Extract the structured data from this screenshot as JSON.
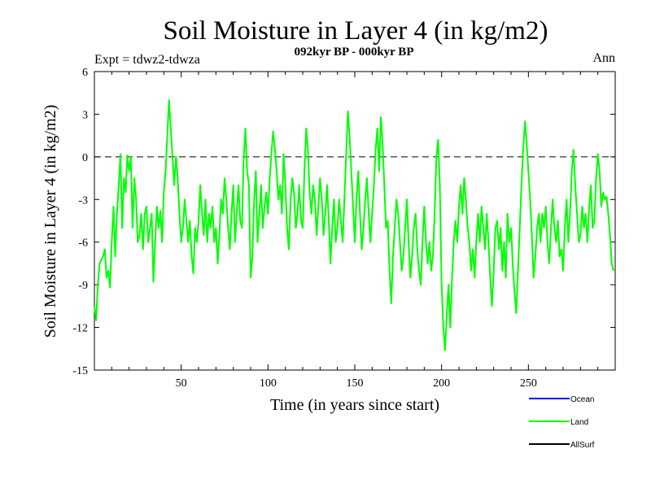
{
  "chart_data": {
    "type": "line",
    "title": "Soil Moisture in Layer 4 (in kg/m2)",
    "subtitle": "092kyr BP - 000kyr BP",
    "left_note": "Expt = tdwz2-tdwza",
    "right_note": "Ann",
    "xlabel": "Time (in years since start)",
    "ylabel": "Soil Moisture in Layer 4 (in kg/m2)",
    "xlim": [
      0,
      300
    ],
    "ylim": [
      -15,
      6
    ],
    "x_ticks": [
      50,
      100,
      150,
      200,
      250
    ],
    "y_ticks": [
      6,
      3,
      0,
      -3,
      -6,
      -9,
      -12,
      -15
    ],
    "zero_line": true,
    "legend": [
      {
        "name": "Ocean",
        "color": "#0000ff"
      },
      {
        "name": "Land",
        "color": "#00ff00"
      },
      {
        "name": "AllSurf",
        "color": "#000000"
      }
    ],
    "series": [
      {
        "name": "Land",
        "color": "#00ff00",
        "points": [
          [
            0,
            -10.5
          ],
          [
            1,
            -11.5
          ],
          [
            2,
            -9
          ],
          [
            3,
            -7.5
          ],
          [
            5,
            -7
          ],
          [
            6,
            -6.5
          ],
          [
            7,
            -8.5
          ],
          [
            8,
            -8
          ],
          [
            9,
            -9.2
          ],
          [
            10,
            -6
          ],
          [
            11,
            -3.5
          ],
          [
            12,
            -7
          ],
          [
            13,
            -4
          ],
          [
            14,
            -2
          ],
          [
            15,
            0.2
          ],
          [
            16,
            -5
          ],
          [
            17,
            -1.5
          ],
          [
            18,
            -2.5
          ],
          [
            19,
            0.1
          ],
          [
            20,
            -1
          ],
          [
            21,
            0
          ],
          [
            22,
            -5
          ],
          [
            23,
            -1.5
          ],
          [
            24,
            -3
          ],
          [
            25,
            -6
          ],
          [
            26,
            -5.5
          ],
          [
            27,
            -4
          ],
          [
            28,
            -6.5
          ],
          [
            29,
            -4
          ],
          [
            30,
            -3.5
          ],
          [
            31,
            -6
          ],
          [
            32,
            -5
          ],
          [
            33,
            -4
          ],
          [
            34,
            -8.8
          ],
          [
            35,
            -6
          ],
          [
            36,
            -3.5
          ],
          [
            37,
            -5
          ],
          [
            38,
            -3.8
          ],
          [
            39,
            -6
          ],
          [
            40,
            -2.5
          ],
          [
            41,
            -1
          ],
          [
            42,
            1.5
          ],
          [
            43,
            4
          ],
          [
            44,
            2
          ],
          [
            45,
            0
          ],
          [
            46,
            -2
          ],
          [
            47,
            0
          ],
          [
            48,
            -1.5
          ],
          [
            49,
            -4
          ],
          [
            50,
            -6
          ],
          [
            51,
            -5
          ],
          [
            52,
            -3
          ],
          [
            53,
            -4.5
          ],
          [
            54,
            -6
          ],
          [
            55,
            -4.5
          ],
          [
            56,
            -7
          ],
          [
            57,
            -8.2
          ],
          [
            58,
            -5
          ],
          [
            59,
            -6
          ],
          [
            60,
            -4.5
          ],
          [
            61,
            -2
          ],
          [
            62,
            -4
          ],
          [
            63,
            -5.5
          ],
          [
            64,
            -3
          ],
          [
            65,
            -6
          ],
          [
            66,
            -4
          ],
          [
            67,
            -5
          ],
          [
            68,
            -3.5
          ],
          [
            69,
            -6
          ],
          [
            70,
            -5
          ],
          [
            71,
            -7.5
          ],
          [
            72,
            -5.5
          ],
          [
            73,
            -3
          ],
          [
            74,
            -4
          ],
          [
            75,
            -1.5
          ],
          [
            76,
            -3
          ],
          [
            77,
            -5
          ],
          [
            78,
            -6.5
          ],
          [
            79,
            -4
          ],
          [
            80,
            -2
          ],
          [
            81,
            -6
          ],
          [
            82,
            -4
          ],
          [
            83,
            -2
          ],
          [
            84,
            -4.5
          ],
          [
            85,
            -5
          ],
          [
            86,
            0
          ],
          [
            87,
            2
          ],
          [
            88,
            -1
          ],
          [
            89,
            -2
          ],
          [
            90,
            -8.5
          ],
          [
            91,
            -7
          ],
          [
            92,
            -3
          ],
          [
            93,
            -1
          ],
          [
            94,
            -6
          ],
          [
            95,
            -4
          ],
          [
            96,
            -2
          ],
          [
            97,
            -5
          ],
          [
            98,
            -3.5
          ],
          [
            99,
            -2.5
          ],
          [
            100,
            -4
          ],
          [
            101,
            -1.5
          ],
          [
            102,
            0.3
          ],
          [
            103,
            1.8
          ],
          [
            104,
            0.5
          ],
          [
            105,
            -1
          ],
          [
            106,
            -3
          ],
          [
            107,
            -2
          ],
          [
            108,
            -4
          ],
          [
            109,
            0.2
          ],
          [
            110,
            -2
          ],
          [
            111,
            -5
          ],
          [
            112,
            -6.5
          ],
          [
            113,
            -3
          ],
          [
            114,
            -1.5
          ],
          [
            115,
            -2.5
          ],
          [
            116,
            -5
          ],
          [
            117,
            -4
          ],
          [
            118,
            -2
          ],
          [
            119,
            -4.5
          ],
          [
            120,
            -5
          ],
          [
            121,
            -1
          ],
          [
            122,
            2
          ],
          [
            123,
            0.5
          ],
          [
            124,
            -2.5
          ],
          [
            125,
            -4
          ],
          [
            126,
            -2
          ],
          [
            127,
            -3
          ],
          [
            128,
            -5.5
          ],
          [
            129,
            -3.5
          ],
          [
            130,
            -1.5
          ],
          [
            131,
            -3
          ],
          [
            132,
            -5.5
          ],
          [
            133,
            -4
          ],
          [
            134,
            -2
          ],
          [
            135,
            -4.5
          ],
          [
            136,
            -7.5
          ],
          [
            137,
            -5
          ],
          [
            138,
            -3
          ],
          [
            139,
            -6
          ],
          [
            140,
            -5
          ],
          [
            141,
            -3
          ],
          [
            142,
            -4.5
          ],
          [
            143,
            -6
          ],
          [
            144,
            -3
          ],
          [
            145,
            0
          ],
          [
            146,
            3.2
          ],
          [
            147,
            1.5
          ],
          [
            148,
            -1
          ],
          [
            149,
            -3.5
          ],
          [
            150,
            -6
          ],
          [
            151,
            -3
          ],
          [
            152,
            -1
          ],
          [
            153,
            -4
          ],
          [
            154,
            -6.5
          ],
          [
            155,
            -5
          ],
          [
            156,
            -3
          ],
          [
            157,
            -1.5
          ],
          [
            158,
            -4
          ],
          [
            159,
            -6
          ],
          [
            160,
            -4
          ],
          [
            161,
            -2
          ],
          [
            162,
            0.5
          ],
          [
            163,
            2
          ],
          [
            164,
            -1
          ],
          [
            165,
            2.8
          ],
          [
            166,
            1
          ],
          [
            167,
            -2
          ],
          [
            168,
            -5
          ],
          [
            169,
            -4.5
          ],
          [
            170,
            -8
          ],
          [
            171,
            -10.3
          ],
          [
            172,
            -7
          ],
          [
            173,
            -5
          ],
          [
            174,
            -3
          ],
          [
            175,
            -4
          ],
          [
            176,
            -6
          ],
          [
            177,
            -8
          ],
          [
            178,
            -7
          ],
          [
            179,
            -5
          ],
          [
            180,
            -3
          ],
          [
            181,
            -6
          ],
          [
            182,
            -8.5
          ],
          [
            183,
            -7
          ],
          [
            184,
            -5
          ],
          [
            185,
            -4
          ],
          [
            186,
            -6.5
          ],
          [
            187,
            -8
          ],
          [
            188,
            -9
          ],
          [
            189,
            -6
          ],
          [
            190,
            -3.5
          ],
          [
            191,
            -6
          ],
          [
            192,
            -7.5
          ],
          [
            193,
            -6
          ],
          [
            194,
            -8
          ],
          [
            195,
            -7
          ],
          [
            196,
            -4
          ],
          [
            197,
            0
          ],
          [
            198,
            1.2
          ],
          [
            199,
            -2
          ],
          [
            200,
            -9
          ],
          [
            201,
            -12
          ],
          [
            202,
            -13.6
          ],
          [
            203,
            -11
          ],
          [
            204,
            -9
          ],
          [
            205,
            -12
          ],
          [
            206,
            -8.5
          ],
          [
            207,
            -6
          ],
          [
            208,
            -4.5
          ],
          [
            209,
            -6
          ],
          [
            210,
            -3.5
          ],
          [
            211,
            -2
          ],
          [
            212,
            -4
          ],
          [
            213,
            -1.5
          ],
          [
            214,
            -3
          ],
          [
            215,
            -5
          ],
          [
            216,
            -6
          ],
          [
            217,
            -8
          ],
          [
            218,
            -6.5
          ],
          [
            219,
            -8.5
          ],
          [
            220,
            -6
          ],
          [
            221,
            -4
          ],
          [
            222,
            -6
          ],
          [
            223,
            -3.5
          ],
          [
            224,
            -5
          ],
          [
            225,
            -6.5
          ],
          [
            226,
            -4
          ],
          [
            227,
            -6
          ],
          [
            228,
            -8.5
          ],
          [
            229,
            -10.5
          ],
          [
            230,
            -8
          ],
          [
            231,
            -5
          ],
          [
            232,
            -4.5
          ],
          [
            233,
            -6.5
          ],
          [
            234,
            -5
          ],
          [
            235,
            -8
          ],
          [
            236,
            -6
          ],
          [
            237,
            -8.5
          ],
          [
            238,
            -4
          ],
          [
            239,
            -6
          ],
          [
            240,
            -5
          ],
          [
            241,
            -7.5
          ],
          [
            242,
            -9.5
          ],
          [
            243,
            -11
          ],
          [
            244,
            -8
          ],
          [
            245,
            -5
          ],
          [
            246,
            -2
          ],
          [
            247,
            0.5
          ],
          [
            248,
            2.5
          ],
          [
            249,
            1
          ],
          [
            250,
            -1
          ],
          [
            251,
            -3
          ],
          [
            252,
            -5.5
          ],
          [
            253,
            -8.5
          ],
          [
            254,
            -7
          ],
          [
            255,
            -5
          ],
          [
            256,
            -4
          ],
          [
            257,
            -6
          ],
          [
            258,
            -4
          ],
          [
            259,
            -5
          ],
          [
            260,
            -3.5
          ],
          [
            261,
            -6
          ],
          [
            262,
            -7.5
          ],
          [
            263,
            -5
          ],
          [
            264,
            -3
          ],
          [
            265,
            -5
          ],
          [
            266,
            -6
          ],
          [
            267,
            -4.5
          ],
          [
            268,
            -7
          ],
          [
            269,
            -6.5
          ],
          [
            270,
            -8
          ],
          [
            271,
            -5
          ],
          [
            272,
            -3
          ],
          [
            273,
            -6
          ],
          [
            274,
            -4
          ],
          [
            275,
            -1
          ],
          [
            276,
            0.5
          ],
          [
            277,
            -2
          ],
          [
            278,
            -4
          ],
          [
            279,
            -6
          ],
          [
            280,
            -5.5
          ],
          [
            281,
            -3.5
          ],
          [
            282,
            -5
          ],
          [
            283,
            -4
          ],
          [
            284,
            -6
          ],
          [
            285,
            -3.5
          ],
          [
            286,
            -2
          ],
          [
            287,
            -5
          ],
          [
            288,
            -4.5
          ],
          [
            289,
            -1.5
          ],
          [
            290,
            0.2
          ],
          [
            291,
            -1
          ],
          [
            292,
            -3.5
          ],
          [
            293,
            -2.5
          ],
          [
            294,
            -3
          ],
          [
            295,
            -2.8
          ],
          [
            296,
            -4
          ],
          [
            297,
            -5.5
          ],
          [
            298,
            -7.5
          ],
          [
            299,
            -8
          ]
        ]
      }
    ]
  }
}
